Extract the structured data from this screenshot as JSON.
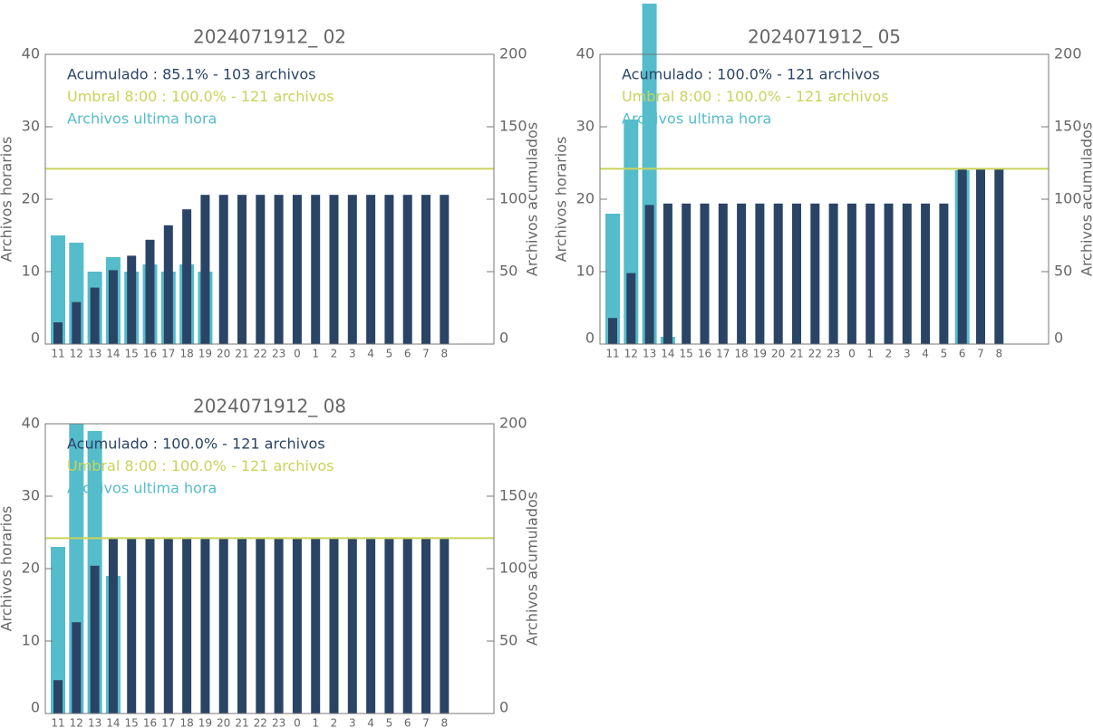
{
  "chart_data": [
    {
      "type": "bar",
      "title": "2024071912_ 02",
      "ylabel": "Archivos horarios",
      "y2label": "Archivos acumulados",
      "categories": [
        "11",
        "12",
        "13",
        "14",
        "15",
        "16",
        "17",
        "18",
        "19",
        "20",
        "21",
        "22",
        "23",
        "0",
        "1",
        "2",
        "3",
        "4",
        "5",
        "6",
        "7",
        "8"
      ],
      "series": [
        {
          "name": "Archivos ultima hora",
          "color": "#55bccb",
          "values": [
            15,
            14,
            10,
            12,
            10,
            11,
            10,
            11,
            10,
            0,
            0,
            0,
            0,
            0,
            0,
            0,
            0,
            0,
            0,
            0,
            0,
            0
          ]
        },
        {
          "name": "Acumulado : 85.1% - 103 archivos",
          "color": "#2a4466",
          "axis": "y2",
          "values": [
            15,
            29,
            39,
            51,
            61,
            72,
            82,
            93,
            103,
            103,
            103,
            103,
            103,
            103,
            103,
            103,
            103,
            103,
            103,
            103,
            103,
            103
          ]
        }
      ],
      "threshold": {
        "label": "Umbral 8:00 : 100.0% - 121 archivos",
        "value": 121,
        "axis": "y2",
        "color": "#c8d45a"
      },
      "ylim": [
        0,
        40
      ],
      "yticks": [
        0,
        10,
        20,
        30,
        40
      ],
      "y2lim": [
        0,
        200
      ],
      "y2ticks": [
        0,
        50,
        100,
        150,
        200
      ]
    },
    {
      "type": "bar",
      "title": "2024071912_ 05",
      "ylabel": "Archivos horarios",
      "y2label": "Archivos acumulados",
      "categories": [
        "11",
        "12",
        "13",
        "14",
        "15",
        "16",
        "17",
        "18",
        "19",
        "20",
        "21",
        "22",
        "23",
        "0",
        "1",
        "2",
        "3",
        "4",
        "5",
        "6",
        "7",
        "8"
      ],
      "series": [
        {
          "name": "Archivos ultima hora",
          "color": "#55bccb",
          "values": [
            18,
            31,
            47,
            1,
            0,
            0,
            0,
            0,
            0,
            0,
            0,
            0,
            0,
            0,
            0,
            0,
            0,
            0,
            0,
            24,
            0,
            0
          ]
        },
        {
          "name": "Acumulado : 100.0% - 121 archivos",
          "color": "#2a4466",
          "axis": "y2",
          "values": [
            18,
            49,
            96,
            97,
            97,
            97,
            97,
            97,
            97,
            97,
            97,
            97,
            97,
            97,
            97,
            97,
            97,
            97,
            97,
            121,
            121,
            121
          ]
        }
      ],
      "threshold": {
        "label": "Umbral 8:00 : 100.0% - 121 archivos",
        "value": 121,
        "axis": "y2",
        "color": "#c8d45a"
      },
      "ylim": [
        0,
        40
      ],
      "yticks": [
        0,
        10,
        20,
        30,
        40
      ],
      "y2lim": [
        0,
        200
      ],
      "y2ticks": [
        0,
        50,
        100,
        150,
        200
      ]
    },
    {
      "type": "bar",
      "title": "2024071912_ 08",
      "ylabel": "Archivos horarios",
      "y2label": "Archivos acumulados",
      "categories": [
        "11",
        "12",
        "13",
        "14",
        "15",
        "16",
        "17",
        "18",
        "19",
        "20",
        "21",
        "22",
        "23",
        "0",
        "1",
        "2",
        "3",
        "4",
        "5",
        "6",
        "7",
        "8"
      ],
      "series": [
        {
          "name": "Archivos ultima hora",
          "color": "#55bccb",
          "values": [
            23,
            40,
            39,
            19,
            0,
            0,
            0,
            0,
            0,
            0,
            0,
            0,
            0,
            0,
            0,
            0,
            0,
            0,
            0,
            0,
            0,
            0
          ]
        },
        {
          "name": "Acumulado : 100.0% - 121 archivos",
          "color": "#2a4466",
          "axis": "y2",
          "values": [
            23,
            63,
            102,
            121,
            121,
            121,
            121,
            121,
            121,
            121,
            121,
            121,
            121,
            121,
            121,
            121,
            121,
            121,
            121,
            121,
            121,
            121
          ]
        }
      ],
      "threshold": {
        "label": "Umbral 8:00 : 100.0% - 121 archivos",
        "value": 121,
        "axis": "y2",
        "color": "#c8d45a"
      },
      "ylim": [
        0,
        40
      ],
      "yticks": [
        0,
        10,
        20,
        30,
        40
      ],
      "y2lim": [
        0,
        200
      ],
      "y2ticks": [
        0,
        50,
        100,
        150,
        200
      ]
    }
  ]
}
